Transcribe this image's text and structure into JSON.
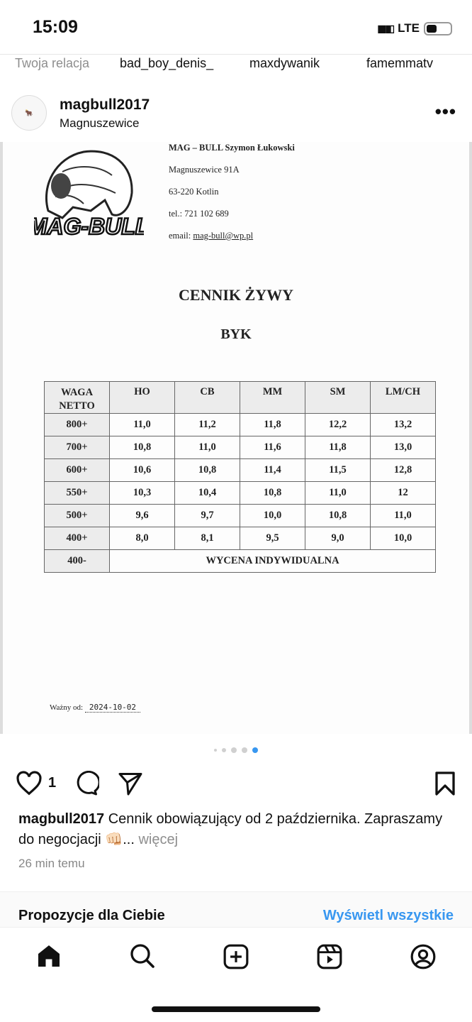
{
  "status_bar": {
    "time": "15:09",
    "network": "LTE"
  },
  "stories": [
    "Twoja relacja",
    "bad_boy_denis_",
    "maxdywanik",
    "famemmatv"
  ],
  "post": {
    "username": "magbull2017",
    "location": "Magnuszewice",
    "document": {
      "logo_text": "MAG-BULL",
      "company": "MAG – BULL Szymon Łukowski",
      "address1": "Magnuszewice 91A",
      "address2": "63-220 Kotlin",
      "phone": "tel.: 721 102 689",
      "email_label": "email: ",
      "email": "mag-bull@wp.pl",
      "title": "CENNIK ŻYWY",
      "subtitle": "BYK",
      "table": {
        "headers": [
          "WAGA NETTO",
          "HO",
          "CB",
          "MM",
          "SM",
          "LM/CH"
        ],
        "rows": [
          [
            "800+",
            "11,0",
            "11,2",
            "11,8",
            "12,2",
            "13,2"
          ],
          [
            "700+",
            "10,8",
            "11,0",
            "11,6",
            "11,8",
            "13,0"
          ],
          [
            "600+",
            "10,6",
            "10,8",
            "11,4",
            "11,5",
            "12,8"
          ],
          [
            "550+",
            "10,3",
            "10,4",
            "10,8",
            "11,0",
            "12"
          ],
          [
            "500+",
            "9,6",
            "9,7",
            "10,0",
            "10,8",
            "11,0"
          ],
          [
            "400+",
            "8,0",
            "8,1",
            "9,5",
            "9,0",
            "10,0"
          ]
        ],
        "last_row": {
          "weight": "400-",
          "note": "WYCENA INDYWIDUALNA"
        }
      },
      "valid_label": "Ważny od:",
      "valid_date": "2024-10-02"
    },
    "carousel": {
      "count": 5,
      "active": 5,
      "accent": "#3897f0"
    },
    "likes": "1",
    "caption_user": "magbull2017",
    "caption_text": "Cennik obowiązujący od 2 października. Zapraszamy do negocjacji 👊🏻...",
    "more": "więcej",
    "time_ago": "26 min temu"
  },
  "suggestions": {
    "title": "Propozycje dla Ciebie",
    "view_all": "Wyświetl wszystkie",
    "link_color": "#3897f0"
  },
  "nav": [
    "home-icon",
    "search-icon",
    "create-icon",
    "reels-icon",
    "profile-icon"
  ]
}
